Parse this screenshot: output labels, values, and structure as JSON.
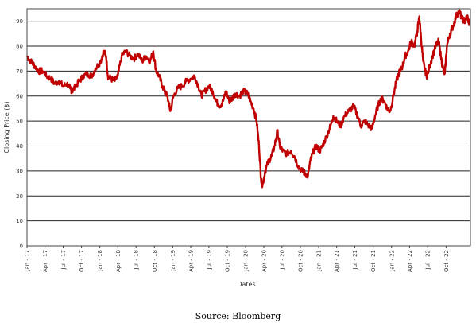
{
  "chart_data": {
    "type": "line",
    "xlabel": "Dates",
    "ylabel": "Closing Price ($)",
    "ylim": [
      0,
      95
    ],
    "yticks": [
      0,
      10,
      20,
      30,
      40,
      50,
      60,
      70,
      80,
      90
    ],
    "grid": "horizontal",
    "xlim": [
      "2017-01-01",
      "2023-01-31"
    ],
    "xticks": [
      {
        "date": "2017-01-01",
        "label": "Jan - 17"
      },
      {
        "date": "2017-04-01",
        "label": "Apr - 17"
      },
      {
        "date": "2017-07-01",
        "label": "Jul - 17"
      },
      {
        "date": "2017-10-01",
        "label": "Oct - 17"
      },
      {
        "date": "2018-01-01",
        "label": "Jan - 18"
      },
      {
        "date": "2018-04-01",
        "label": "Apr - 18"
      },
      {
        "date": "2018-07-01",
        "label": "Jul - 18"
      },
      {
        "date": "2018-10-01",
        "label": "Oct - 18"
      },
      {
        "date": "2019-01-01",
        "label": "Jan - 19"
      },
      {
        "date": "2019-04-01",
        "label": "Apr - 19"
      },
      {
        "date": "2019-07-01",
        "label": "Jul - 19"
      },
      {
        "date": "2019-10-01",
        "label": "Oct - 19"
      },
      {
        "date": "2020-01-01",
        "label": "Jan - 20"
      },
      {
        "date": "2020-04-01",
        "label": "Apr - 20"
      },
      {
        "date": "2020-07-01",
        "label": "Jul - 20"
      },
      {
        "date": "2020-10-01",
        "label": "Oct - 20"
      },
      {
        "date": "2021-01-01",
        "label": "Jan - 21"
      },
      {
        "date": "2021-04-01",
        "label": "Apr - 21"
      },
      {
        "date": "2021-07-01",
        "label": "Jul - 21"
      },
      {
        "date": "2021-10-01",
        "label": "Oct - 21"
      },
      {
        "date": "2022-01-01",
        "label": "Jan - 22"
      },
      {
        "date": "2022-04-01",
        "label": "Apr - 22"
      },
      {
        "date": "2022-07-01",
        "label": "Jul - 22"
      },
      {
        "date": "2022-10-01",
        "label": "Oct - 22"
      }
    ],
    "series": [
      {
        "color": "#c00000",
        "points": [
          [
            "2017-01-01",
            76
          ],
          [
            "2017-01-20",
            74
          ],
          [
            "2017-02-10",
            72
          ],
          [
            "2017-03-01",
            70
          ],
          [
            "2017-03-20",
            70
          ],
          [
            "2017-04-10",
            68
          ],
          [
            "2017-05-01",
            67
          ],
          [
            "2017-05-20",
            65
          ],
          [
            "2017-06-10",
            66
          ],
          [
            "2017-07-01",
            64
          ],
          [
            "2017-07-20",
            65
          ],
          [
            "2017-08-05",
            63
          ],
          [
            "2017-08-15",
            62
          ],
          [
            "2017-09-01",
            64
          ],
          [
            "2017-09-20",
            66
          ],
          [
            "2017-10-10",
            68
          ],
          [
            "2017-11-01",
            69
          ],
          [
            "2017-11-20",
            68
          ],
          [
            "2017-12-10",
            71
          ],
          [
            "2018-01-05",
            74
          ],
          [
            "2018-01-20",
            78
          ],
          [
            "2018-02-01",
            76
          ],
          [
            "2018-02-10",
            68
          ],
          [
            "2018-02-25",
            67
          ],
          [
            "2018-03-15",
            66
          ],
          [
            "2018-04-01",
            68
          ],
          [
            "2018-04-20",
            76
          ],
          [
            "2018-05-10",
            78
          ],
          [
            "2018-06-01",
            76
          ],
          [
            "2018-06-20",
            75
          ],
          [
            "2018-07-10",
            77
          ],
          [
            "2018-08-01",
            74
          ],
          [
            "2018-08-20",
            76
          ],
          [
            "2018-09-10",
            74
          ],
          [
            "2018-09-25",
            78
          ],
          [
            "2018-10-10",
            70
          ],
          [
            "2018-10-25",
            68
          ],
          [
            "2018-11-10",
            64
          ],
          [
            "2018-11-25",
            62
          ],
          [
            "2018-12-10",
            58
          ],
          [
            "2018-12-20",
            54
          ],
          [
            "2019-01-05",
            60
          ],
          [
            "2019-01-25",
            63
          ],
          [
            "2019-02-15",
            64
          ],
          [
            "2019-03-10",
            66
          ],
          [
            "2019-04-01",
            67
          ],
          [
            "2019-04-20",
            68
          ],
          [
            "2019-05-10",
            64
          ],
          [
            "2019-05-25",
            60
          ],
          [
            "2019-06-10",
            62
          ],
          [
            "2019-07-01",
            64
          ],
          [
            "2019-07-20",
            62
          ],
          [
            "2019-08-05",
            58
          ],
          [
            "2019-08-25",
            56
          ],
          [
            "2019-09-10",
            58
          ],
          [
            "2019-09-25",
            62
          ],
          [
            "2019-10-10",
            58
          ],
          [
            "2019-10-25",
            59
          ],
          [
            "2019-11-10",
            61
          ],
          [
            "2019-12-01",
            60
          ],
          [
            "2019-12-20",
            62
          ],
          [
            "2020-01-10",
            61
          ],
          [
            "2020-01-25",
            58
          ],
          [
            "2020-02-10",
            55
          ],
          [
            "2020-02-25",
            50
          ],
          [
            "2020-03-08",
            40
          ],
          [
            "2020-03-18",
            27
          ],
          [
            "2020-03-25",
            24
          ],
          [
            "2020-04-08",
            30
          ],
          [
            "2020-04-25",
            34
          ],
          [
            "2020-05-10",
            36
          ],
          [
            "2020-05-25",
            40
          ],
          [
            "2020-06-08",
            46
          ],
          [
            "2020-06-20",
            40
          ],
          [
            "2020-07-05",
            38
          ],
          [
            "2020-07-25",
            37
          ],
          [
            "2020-08-15",
            38
          ],
          [
            "2020-09-01",
            36
          ],
          [
            "2020-09-20",
            32
          ],
          [
            "2020-10-10",
            30
          ],
          [
            "2020-10-25",
            29
          ],
          [
            "2020-11-08",
            28
          ],
          [
            "2020-11-20",
            34
          ],
          [
            "2020-12-05",
            38
          ],
          [
            "2020-12-20",
            40
          ],
          [
            "2021-01-05",
            38
          ],
          [
            "2021-01-20",
            40
          ],
          [
            "2021-02-10",
            44
          ],
          [
            "2021-03-01",
            48
          ],
          [
            "2021-03-15",
            52
          ],
          [
            "2021-04-01",
            50
          ],
          [
            "2021-04-20",
            48
          ],
          [
            "2021-05-10",
            52
          ],
          [
            "2021-06-01",
            54
          ],
          [
            "2021-06-25",
            56
          ],
          [
            "2021-07-15",
            52
          ],
          [
            "2021-08-01",
            48
          ],
          [
            "2021-08-20",
            50
          ],
          [
            "2021-09-10",
            48
          ],
          [
            "2021-09-25",
            47
          ],
          [
            "2021-10-10",
            52
          ],
          [
            "2021-10-25",
            56
          ],
          [
            "2021-11-10",
            59
          ],
          [
            "2021-11-25",
            58
          ],
          [
            "2021-12-10",
            55
          ],
          [
            "2021-12-25",
            54
          ],
          [
            "2022-01-10",
            60
          ],
          [
            "2022-01-25",
            66
          ],
          [
            "2022-02-10",
            70
          ],
          [
            "2022-02-25",
            72
          ],
          [
            "2022-03-10",
            76
          ],
          [
            "2022-03-25",
            78
          ],
          [
            "2022-04-10",
            82
          ],
          [
            "2022-04-25",
            80
          ],
          [
            "2022-05-10",
            86
          ],
          [
            "2022-05-20",
            92
          ],
          [
            "2022-05-28",
            84
          ],
          [
            "2022-06-08",
            74
          ],
          [
            "2022-06-18",
            70
          ],
          [
            "2022-06-28",
            68
          ],
          [
            "2022-07-10",
            72
          ],
          [
            "2022-07-25",
            76
          ],
          [
            "2022-08-10",
            80
          ],
          [
            "2022-08-25",
            82
          ],
          [
            "2022-09-05",
            76
          ],
          [
            "2022-09-18",
            70
          ],
          [
            "2022-09-25",
            69
          ],
          [
            "2022-10-05",
            80
          ],
          [
            "2022-10-20",
            85
          ],
          [
            "2022-11-05",
            88
          ],
          [
            "2022-11-20",
            92
          ],
          [
            "2022-12-05",
            94
          ],
          [
            "2022-12-20",
            91
          ],
          [
            "2023-01-05",
            90
          ],
          [
            "2023-01-15",
            92
          ],
          [
            "2023-01-25",
            89
          ]
        ]
      }
    ]
  },
  "caption": "Source: Bloomberg"
}
